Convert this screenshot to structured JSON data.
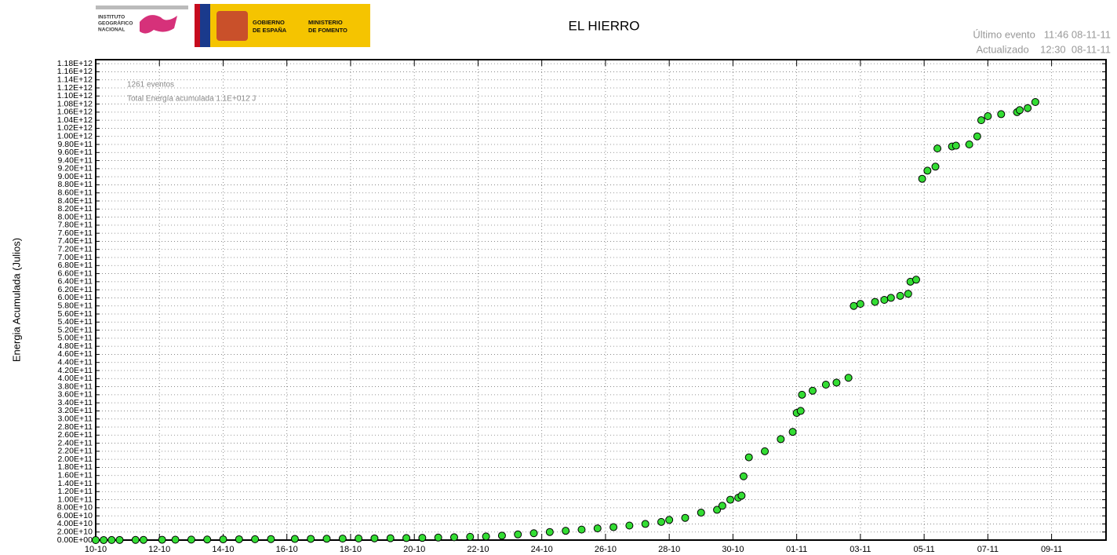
{
  "header": {
    "ign_logo": [
      "INSTITUTO",
      "GEOGRÁFICO",
      "NACIONAL"
    ],
    "gov_logo": [
      "GOBIERNO",
      "DE ESPAÑA"
    ],
    "ministry_logo": [
      "MINISTERIO",
      "DE FOMENTO"
    ],
    "last_event": "Último evento   11:46 08-11-11",
    "updated": "Actualizado    12:30  08-11-11"
  },
  "chart_data": {
    "type": "scatter",
    "title": "EL HIERRO",
    "y_label": "Energia Acumulada (Julios)",
    "annotations": [
      "1261 eventos",
      "Total Energía acumulada 1.1E+012 J"
    ],
    "color": "#33dd33",
    "edge_color": "#000000",
    "grid": true,
    "xlim": [
      "2011-10-10T00:00",
      "2011-11-10T17:00"
    ],
    "xticks": [
      {
        "value": "2011-10-10T00:00",
        "label": "10-10"
      },
      {
        "value": "2011-10-12T00:00",
        "label": "12-10"
      },
      {
        "value": "2011-10-14T00:00",
        "label": "14-10"
      },
      {
        "value": "2011-10-16T00:00",
        "label": "16-10"
      },
      {
        "value": "2011-10-18T00:00",
        "label": "18-10"
      },
      {
        "value": "2011-10-20T00:00",
        "label": "20-10"
      },
      {
        "value": "2011-10-22T00:00",
        "label": "22-10"
      },
      {
        "value": "2011-10-24T00:00",
        "label": "24-10"
      },
      {
        "value": "2011-10-26T00:00",
        "label": "26-10"
      },
      {
        "value": "2011-10-28T00:00",
        "label": "28-10"
      },
      {
        "value": "2011-10-30T00:00",
        "label": "30-10"
      },
      {
        "value": "2011-11-01T00:00",
        "label": "01-11"
      },
      {
        "value": "2011-11-03T00:00",
        "label": "03-11"
      },
      {
        "value": "2011-11-05T00:00",
        "label": "05-11"
      },
      {
        "value": "2011-11-07T00:00",
        "label": "07-11"
      },
      {
        "value": "2011-11-09T00:00",
        "label": "09-11"
      }
    ],
    "ylim": [
      0,
      1190000000000.0
    ],
    "yticks": [
      {
        "value": 0,
        "label": "0.00E+00"
      },
      {
        "value": 20000000000.0,
        "label": "2.00E+10"
      },
      {
        "value": 40000000000.0,
        "label": "4.00E+10"
      },
      {
        "value": 60000000000.0,
        "label": "6.00E+10"
      },
      {
        "value": 80000000000.0,
        "label": "8.00E+10"
      },
      {
        "value": 100000000000.0,
        "label": "1.00E+11"
      },
      {
        "value": 120000000000.0,
        "label": "1.20E+11"
      },
      {
        "value": 140000000000.0,
        "label": "1.40E+11"
      },
      {
        "value": 160000000000.0,
        "label": "1.60E+11"
      },
      {
        "value": 180000000000.0,
        "label": "1.80E+11"
      },
      {
        "value": 200000000000.0,
        "label": "2.00E+11"
      },
      {
        "value": 220000000000.0,
        "label": "2.20E+11"
      },
      {
        "value": 240000000000.0,
        "label": "2.40E+11"
      },
      {
        "value": 260000000000.0,
        "label": "2.60E+11"
      },
      {
        "value": 280000000000.0,
        "label": "2.80E+11"
      },
      {
        "value": 300000000000.0,
        "label": "3.00E+11"
      },
      {
        "value": 320000000000.0,
        "label": "3.20E+11"
      },
      {
        "value": 340000000000.0,
        "label": "3.40E+11"
      },
      {
        "value": 360000000000.0,
        "label": "3.60E+11"
      },
      {
        "value": 380000000000.0,
        "label": "3.80E+11"
      },
      {
        "value": 400000000000.0,
        "label": "4.00E+11"
      },
      {
        "value": 420000000000.0,
        "label": "4.20E+11"
      },
      {
        "value": 440000000000.0,
        "label": "4.40E+11"
      },
      {
        "value": 460000000000.0,
        "label": "4.60E+11"
      },
      {
        "value": 480000000000.0,
        "label": "4.80E+11"
      },
      {
        "value": 500000000000.0,
        "label": "5.00E+11"
      },
      {
        "value": 520000000000.0,
        "label": "5.20E+11"
      },
      {
        "value": 540000000000.0,
        "label": "5.40E+11"
      },
      {
        "value": 560000000000.0,
        "label": "5.60E+11"
      },
      {
        "value": 580000000000.0,
        "label": "5.80E+11"
      },
      {
        "value": 600000000000.0,
        "label": "6.00E+11"
      },
      {
        "value": 620000000000.0,
        "label": "6.20E+11"
      },
      {
        "value": 640000000000.0,
        "label": "6.40E+11"
      },
      {
        "value": 660000000000.0,
        "label": "6.60E+11"
      },
      {
        "value": 680000000000.0,
        "label": "6.80E+11"
      },
      {
        "value": 700000000000.0,
        "label": "7.00E+11"
      },
      {
        "value": 720000000000.0,
        "label": "7.20E+11"
      },
      {
        "value": 740000000000.0,
        "label": "7.40E+11"
      },
      {
        "value": 760000000000.0,
        "label": "7.60E+11"
      },
      {
        "value": 780000000000.0,
        "label": "7.80E+11"
      },
      {
        "value": 800000000000.0,
        "label": "8.00E+11"
      },
      {
        "value": 820000000000.0,
        "label": "8.20E+11"
      },
      {
        "value": 840000000000.0,
        "label": "8.40E+11"
      },
      {
        "value": 860000000000.0,
        "label": "8.60E+11"
      },
      {
        "value": 880000000000.0,
        "label": "8.80E+11"
      },
      {
        "value": 900000000000.0,
        "label": "9.00E+11"
      },
      {
        "value": 920000000000.0,
        "label": "9.20E+11"
      },
      {
        "value": 940000000000.0,
        "label": "9.40E+11"
      },
      {
        "value": 960000000000.0,
        "label": "9.60E+11"
      },
      {
        "value": 980000000000.0,
        "label": "9.80E+11"
      },
      {
        "value": 1000000000000.0,
        "label": "1.00E+12"
      },
      {
        "value": 1020000000000.0,
        "label": "1.02E+12"
      },
      {
        "value": 1040000000000.0,
        "label": "1.04E+12"
      },
      {
        "value": 1060000000000.0,
        "label": "1.06E+12"
      },
      {
        "value": 1080000000000.0,
        "label": "1.08E+12"
      },
      {
        "value": 1100000000000.0,
        "label": "1.10E+12"
      },
      {
        "value": 1120000000000.0,
        "label": "1.12E+12"
      },
      {
        "value": 1140000000000.0,
        "label": "1.14E+12"
      },
      {
        "value": 1160000000000.0,
        "label": "1.16E+12"
      },
      {
        "value": 1180000000000.0,
        "label": "1.18E+12"
      }
    ],
    "x": [
      "2011-10-10T00:00",
      "2011-10-10T06:00",
      "2011-10-10T12:00",
      "2011-10-10T18:00",
      "2011-10-11T06:00",
      "2011-10-11T12:00",
      "2011-10-12T02:00",
      "2011-10-12T12:00",
      "2011-10-13T00:00",
      "2011-10-13T12:00",
      "2011-10-14T00:00",
      "2011-10-14T12:00",
      "2011-10-15T00:00",
      "2011-10-15T12:00",
      "2011-10-16T06:00",
      "2011-10-16T18:00",
      "2011-10-17T06:00",
      "2011-10-17T18:00",
      "2011-10-18T06:00",
      "2011-10-18T18:00",
      "2011-10-19T06:00",
      "2011-10-19T18:00",
      "2011-10-20T06:00",
      "2011-10-20T18:00",
      "2011-10-21T06:00",
      "2011-10-21T18:00",
      "2011-10-22T06:00",
      "2011-10-22T18:00",
      "2011-10-23T06:00",
      "2011-10-23T18:00",
      "2011-10-24T06:00",
      "2011-10-24T18:00",
      "2011-10-25T06:00",
      "2011-10-25T18:00",
      "2011-10-26T06:00",
      "2011-10-26T18:00",
      "2011-10-27T06:00",
      "2011-10-27T18:00",
      "2011-10-28T00:00",
      "2011-10-28T12:00",
      "2011-10-29T00:00",
      "2011-10-29T12:00",
      "2011-10-29T16:00",
      "2011-10-29T22:00",
      "2011-10-30T04:00",
      "2011-10-30T06:30",
      "2011-10-30T08:00",
      "2011-10-30T12:00",
      "2011-10-31T00:00",
      "2011-10-31T12:00",
      "2011-10-31T21:00",
      "2011-11-01T00:00",
      "2011-11-01T03:00",
      "2011-11-01T04:00",
      "2011-11-01T12:00",
      "2011-11-01T22:00",
      "2011-11-02T06:00",
      "2011-11-02T15:00",
      "2011-11-02T19:00",
      "2011-11-03T00:00",
      "2011-11-03T11:00",
      "2011-11-03T18:00",
      "2011-11-03T23:00",
      "2011-11-04T06:00",
      "2011-11-04T12:00",
      "2011-11-04T13:40",
      "2011-11-04T18:00",
      "2011-11-04T22:30",
      "2011-11-05T02:30",
      "2011-11-05T08:30",
      "2011-11-05T10:00",
      "2011-11-05T21:00",
      "2011-11-06T00:00",
      "2011-11-06T10:00",
      "2011-11-06T16:00",
      "2011-11-06T19:00",
      "2011-11-07T00:00",
      "2011-11-07T10:00",
      "2011-11-07T22:00",
      "2011-11-08T00:00",
      "2011-11-08T06:00",
      "2011-11-08T11:46"
    ],
    "values": [
      0,
      100000000.0,
      200000000.0,
      300000000.0,
      500000000.0,
      600000000.0,
      800000000.0,
      1000000000.0,
      1200000000.0,
      1500000000.0,
      1800000000.0,
      2000000000.0,
      2200000000.0,
      2500000000.0,
      2800000000.0,
      3000000000.0,
      3300000000.0,
      3600000000.0,
      3900000000.0,
      4200000000.0,
      4500000000.0,
      5000000000.0,
      5500000000.0,
      6200000000.0,
      7000000000.0,
      8000000000.0,
      9000000000.0,
      11000000000.0,
      14000000000.0,
      17000000000.0,
      20000000000.0,
      23000000000.0,
      26000000000.0,
      29000000000.0,
      32000000000.0,
      36000000000.0,
      40000000000.0,
      45000000000.0,
      50000000000.0,
      55000000000.0,
      68000000000.0,
      75000000000.0,
      85000000000.0,
      100000000000.0,
      105000000000.0,
      110000000000.0,
      158000000000.0,
      205000000000.0,
      220000000000.0,
      250000000000.0,
      268000000000.0,
      315000000000.0,
      320000000000.0,
      360000000000.0,
      370000000000.0,
      385000000000.0,
      390000000000.0,
      402000000000.0,
      580000000000.0,
      585000000000.0,
      590000000000.0,
      595000000000.0,
      600000000000.0,
      605000000000.0,
      610000000000.0,
      640000000000.0,
      645000000000.0,
      895000000000.0,
      915000000000.0,
      925000000000.0,
      970000000000.0,
      975000000000.0,
      977000000000.0,
      980000000000.0,
      1000000000000.0,
      1040000000000.0,
      1050000000000.0,
      1055000000000.0,
      1060000000000.0,
      1065000000000.0,
      1070000000000.0,
      1085000000000.0
    ]
  }
}
